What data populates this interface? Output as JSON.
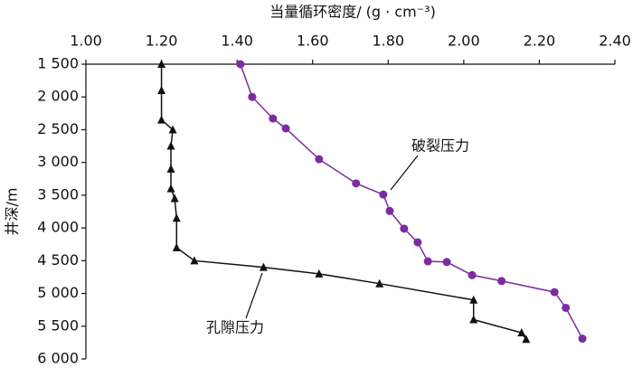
{
  "chart_data": {
    "type": "line",
    "title": "当量循环密度/ (g · cm⁻³)",
    "y_label": "井深/m",
    "xlim": [
      1.0,
      2.4
    ],
    "xticks": [
      {
        "value": 1.0,
        "label": "1.00"
      },
      {
        "value": 1.2,
        "label": "1.20"
      },
      {
        "value": 1.4,
        "label": "1.40"
      },
      {
        "value": 1.6,
        "label": "1.60"
      },
      {
        "value": 1.8,
        "label": "1.80"
      },
      {
        "value": 2.0,
        "label": "2.00"
      },
      {
        "value": 2.2,
        "label": "2.20"
      },
      {
        "value": 2.4,
        "label": "2.40"
      }
    ],
    "ylim": [
      1500,
      6000
    ],
    "yticks": [
      {
        "value": 1500,
        "label": "1 500"
      },
      {
        "value": 2000,
        "label": "2 000"
      },
      {
        "value": 2500,
        "label": "2 500"
      },
      {
        "value": 3000,
        "label": "3 000"
      },
      {
        "value": 3500,
        "label": "3 500"
      },
      {
        "value": 4000,
        "label": "4 000"
      },
      {
        "value": 4500,
        "label": "4 500"
      },
      {
        "value": 5000,
        "label": "5 000"
      },
      {
        "value": 5500,
        "label": "5 500"
      },
      {
        "value": 6000,
        "label": "6 000"
      }
    ],
    "y_inverted": true,
    "series": [
      {
        "name": "孔隙压力",
        "color": "#111111",
        "marker": "triangle",
        "x": [
          1.2,
          1.2,
          1.2,
          1.23,
          1.225,
          1.225,
          1.225,
          1.235,
          1.24,
          1.24,
          1.287,
          1.47,
          1.617,
          1.777,
          2.026,
          2.026,
          2.153,
          2.165
        ],
        "y": [
          1500,
          1900,
          2350,
          2500,
          2750,
          3100,
          3400,
          3550,
          3850,
          4300,
          4500,
          4600,
          4700,
          4850,
          5100,
          5400,
          5600,
          5700
        ]
      },
      {
        "name": "破裂压力",
        "color": "#7b2c9e",
        "marker": "circle",
        "x": [
          1.409,
          1.44,
          1.495,
          1.529,
          1.617,
          1.715,
          1.787,
          1.804,
          1.842,
          1.878,
          1.905,
          1.955,
          2.022,
          2.1,
          2.24,
          2.27,
          2.314
        ],
        "y": [
          1500,
          2000,
          2330,
          2480,
          2950,
          3320,
          3490,
          3740,
          4010,
          4220,
          4510,
          4520,
          4720,
          4810,
          4980,
          5220,
          5690
        ]
      }
    ]
  }
}
